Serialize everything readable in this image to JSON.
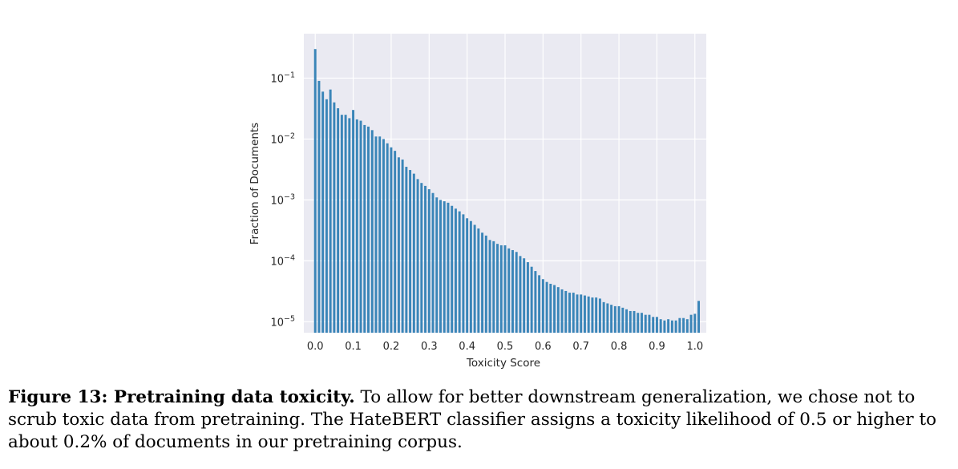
{
  "chart_data": {
    "type": "bar",
    "xlabel": "Toxicity Score",
    "ylabel": "Fraction of Documents",
    "x_ticks": [
      "0.0",
      "0.1",
      "0.2",
      "0.3",
      "0.4",
      "0.5",
      "0.6",
      "0.7",
      "0.8",
      "0.9",
      "1.0"
    ],
    "y_ticks": [
      {
        "base": "10",
        "exp": "−1",
        "value": 0.1
      },
      {
        "base": "10",
        "exp": "−2",
        "value": 0.01
      },
      {
        "base": "10",
        "exp": "−3",
        "value": 0.001
      },
      {
        "base": "10",
        "exp": "−4",
        "value": 0.0001
      },
      {
        "base": "10",
        "exp": "−5",
        "value": 1e-05
      }
    ],
    "yscale": "log",
    "xlim": [
      -0.03,
      1.03
    ],
    "ylim_exp": [
      -5.18,
      -0.27
    ],
    "grid": true,
    "bar_color": "#3a85b8",
    "background_color": "#eaeaf2",
    "bin_width": 0.01,
    "x_start": 0.0,
    "values": [
      0.3,
      0.09,
      0.06,
      0.045,
      0.065,
      0.04,
      0.032,
      0.025,
      0.025,
      0.022,
      0.03,
      0.021,
      0.02,
      0.017,
      0.016,
      0.014,
      0.011,
      0.011,
      0.01,
      0.0085,
      0.0073,
      0.0064,
      0.005,
      0.0046,
      0.0035,
      0.0031,
      0.0027,
      0.0022,
      0.0019,
      0.0017,
      0.0015,
      0.0013,
      0.0011,
      0.001,
      0.00095,
      0.0009,
      0.0008,
      0.00072,
      0.00065,
      0.00058,
      0.0005,
      0.00045,
      0.00039,
      0.00034,
      0.00029,
      0.00026,
      0.00022,
      0.00021,
      0.00019,
      0.00018,
      0.00018,
      0.00016,
      0.00015,
      0.00014,
      0.00012,
      0.00011,
      9.5e-05,
      8e-05,
      6.8e-05,
      5.8e-05,
      5e-05,
      4.5e-05,
      4.2e-05,
      4e-05,
      3.7e-05,
      3.4e-05,
      3.2e-05,
      3e-05,
      3e-05,
      2.8e-05,
      2.8e-05,
      2.7e-05,
      2.6e-05,
      2.5e-05,
      2.5e-05,
      2.4e-05,
      2.1e-05,
      2e-05,
      1.9e-05,
      1.8e-05,
      1.8e-05,
      1.7e-05,
      1.6e-05,
      1.5e-05,
      1.5e-05,
      1.4e-05,
      1.4e-05,
      1.3e-05,
      1.3e-05,
      1.2e-05,
      1.2e-05,
      1.1e-05,
      1.05e-05,
      1.1e-05,
      1.05e-05,
      1.05e-05,
      1.15e-05,
      1.15e-05,
      1.1e-05,
      1.3e-05,
      1.35e-05,
      2.2e-05
    ]
  },
  "caption": {
    "label": "Figure 13: Pretraining data toxicity.",
    "text": " To allow for better downstream generalization, we chose not to scrub toxic data from pretraining. The HateBERT classifier assigns a toxicity likelihood of 0.5 or higher to about 0.2% of documents in our pretraining corpus."
  }
}
